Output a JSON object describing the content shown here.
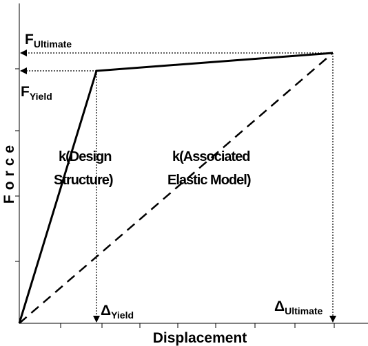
{
  "axes": {
    "x_label": "Displacement",
    "y_label": "Force"
  },
  "labels": {
    "f_ultimate": {
      "symbol": "F",
      "subscript": "Ultimate"
    },
    "f_yield": {
      "symbol": "F",
      "subscript": "Yield"
    },
    "delta_yield": {
      "symbol": "Δ",
      "subscript": "Yield"
    },
    "delta_ultimate": {
      "symbol": "Δ",
      "subscript": "Ultimate"
    },
    "k_design": [
      "k(Design",
      "Structure)"
    ],
    "k_elastic": [
      "k(Associated",
      "Elastic Model)"
    ]
  }
}
